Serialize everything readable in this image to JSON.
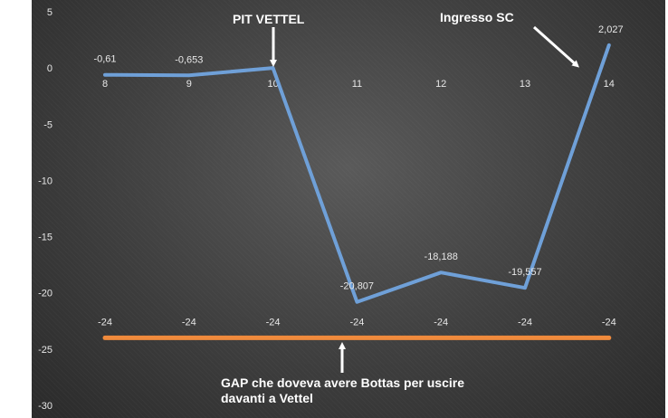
{
  "chart_data": {
    "type": "line",
    "y_ticks": [
      5,
      0,
      -5,
      -10,
      -15,
      -20,
      -25,
      -30
    ],
    "ylim": [
      -30,
      5
    ],
    "x": [
      "8",
      "9",
      "10",
      "11",
      "12",
      "13",
      "14"
    ],
    "series": [
      {
        "values": [
          -0.61,
          -0.653,
          0,
          -20.807,
          -18.188,
          -19.557,
          2.027
        ],
        "labels": [
          "-0,61",
          "-0,653",
          "",
          "-20,807",
          "-18,188",
          "-19,557",
          "2,027"
        ],
        "color": "#6fa0d8"
      },
      {
        "values": [
          -24,
          -24,
          -24,
          -24,
          -24,
          -24,
          -24
        ],
        "labels": [
          "-24",
          "-24",
          "-24",
          "-24",
          "-24",
          "-24",
          "-24"
        ],
        "color": "#f08a3c"
      }
    ],
    "annotations": {
      "pit": "PIT VETTEL",
      "sc": "Ingresso SC",
      "gap_line1": "GAP che doveva avere Bottas per uscire",
      "gap_line2": "davanti a Vettel"
    },
    "grid": false
  }
}
